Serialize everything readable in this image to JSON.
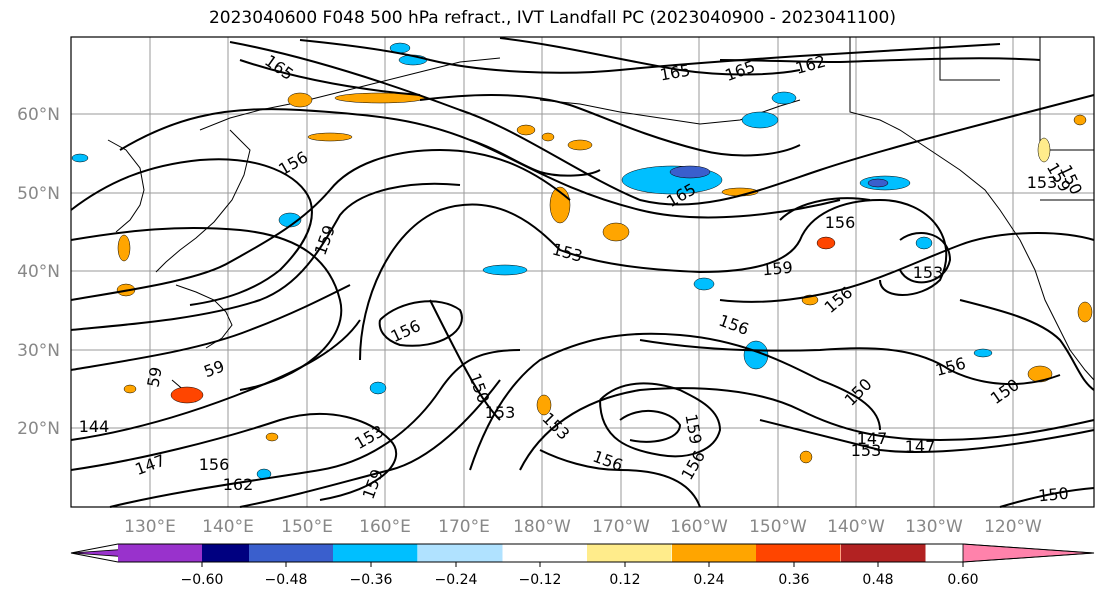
{
  "title": "2023040600 F048 500 hPa refract., IVT Landfall PC (2023040900 - 2023041100)",
  "latitudes": [
    "60°N",
    "50°N",
    "40°N",
    "30°N",
    "20°N"
  ],
  "longitudes": [
    "130°E",
    "140°E",
    "150°E",
    "160°E",
    "170°E",
    "180°W",
    "170°W",
    "160°W",
    "150°W",
    "140°W",
    "130°W",
    "120°W"
  ],
  "contour_labels": [
    "165",
    "165",
    "165",
    "162",
    "156",
    "165",
    "156",
    "159",
    "153",
    "159",
    "156",
    "153",
    "156",
    "156",
    "153",
    "150",
    "153",
    "147",
    "153",
    "159",
    "156",
    "156",
    "150",
    "156",
    "150",
    "147",
    "153",
    "150",
    "150",
    "159",
    "59",
    "144",
    "147",
    "156",
    "162",
    "153",
    "59",
    "159"
  ],
  "colorbar": {
    "ticks": [
      "−0.60",
      "−0.48",
      "−0.36",
      "−0.24",
      "−0.12",
      "0.12",
      "0.24",
      "0.36",
      "0.48",
      "0.60"
    ],
    "colors": [
      "#9932cc",
      "#000080",
      "#3a5fcd",
      "#00bfff",
      "#b0e2ff",
      "#ffffff",
      "#ffec8b",
      "#ffa500",
      "#ff4500",
      "#b22222",
      "#ff82ab"
    ]
  }
}
